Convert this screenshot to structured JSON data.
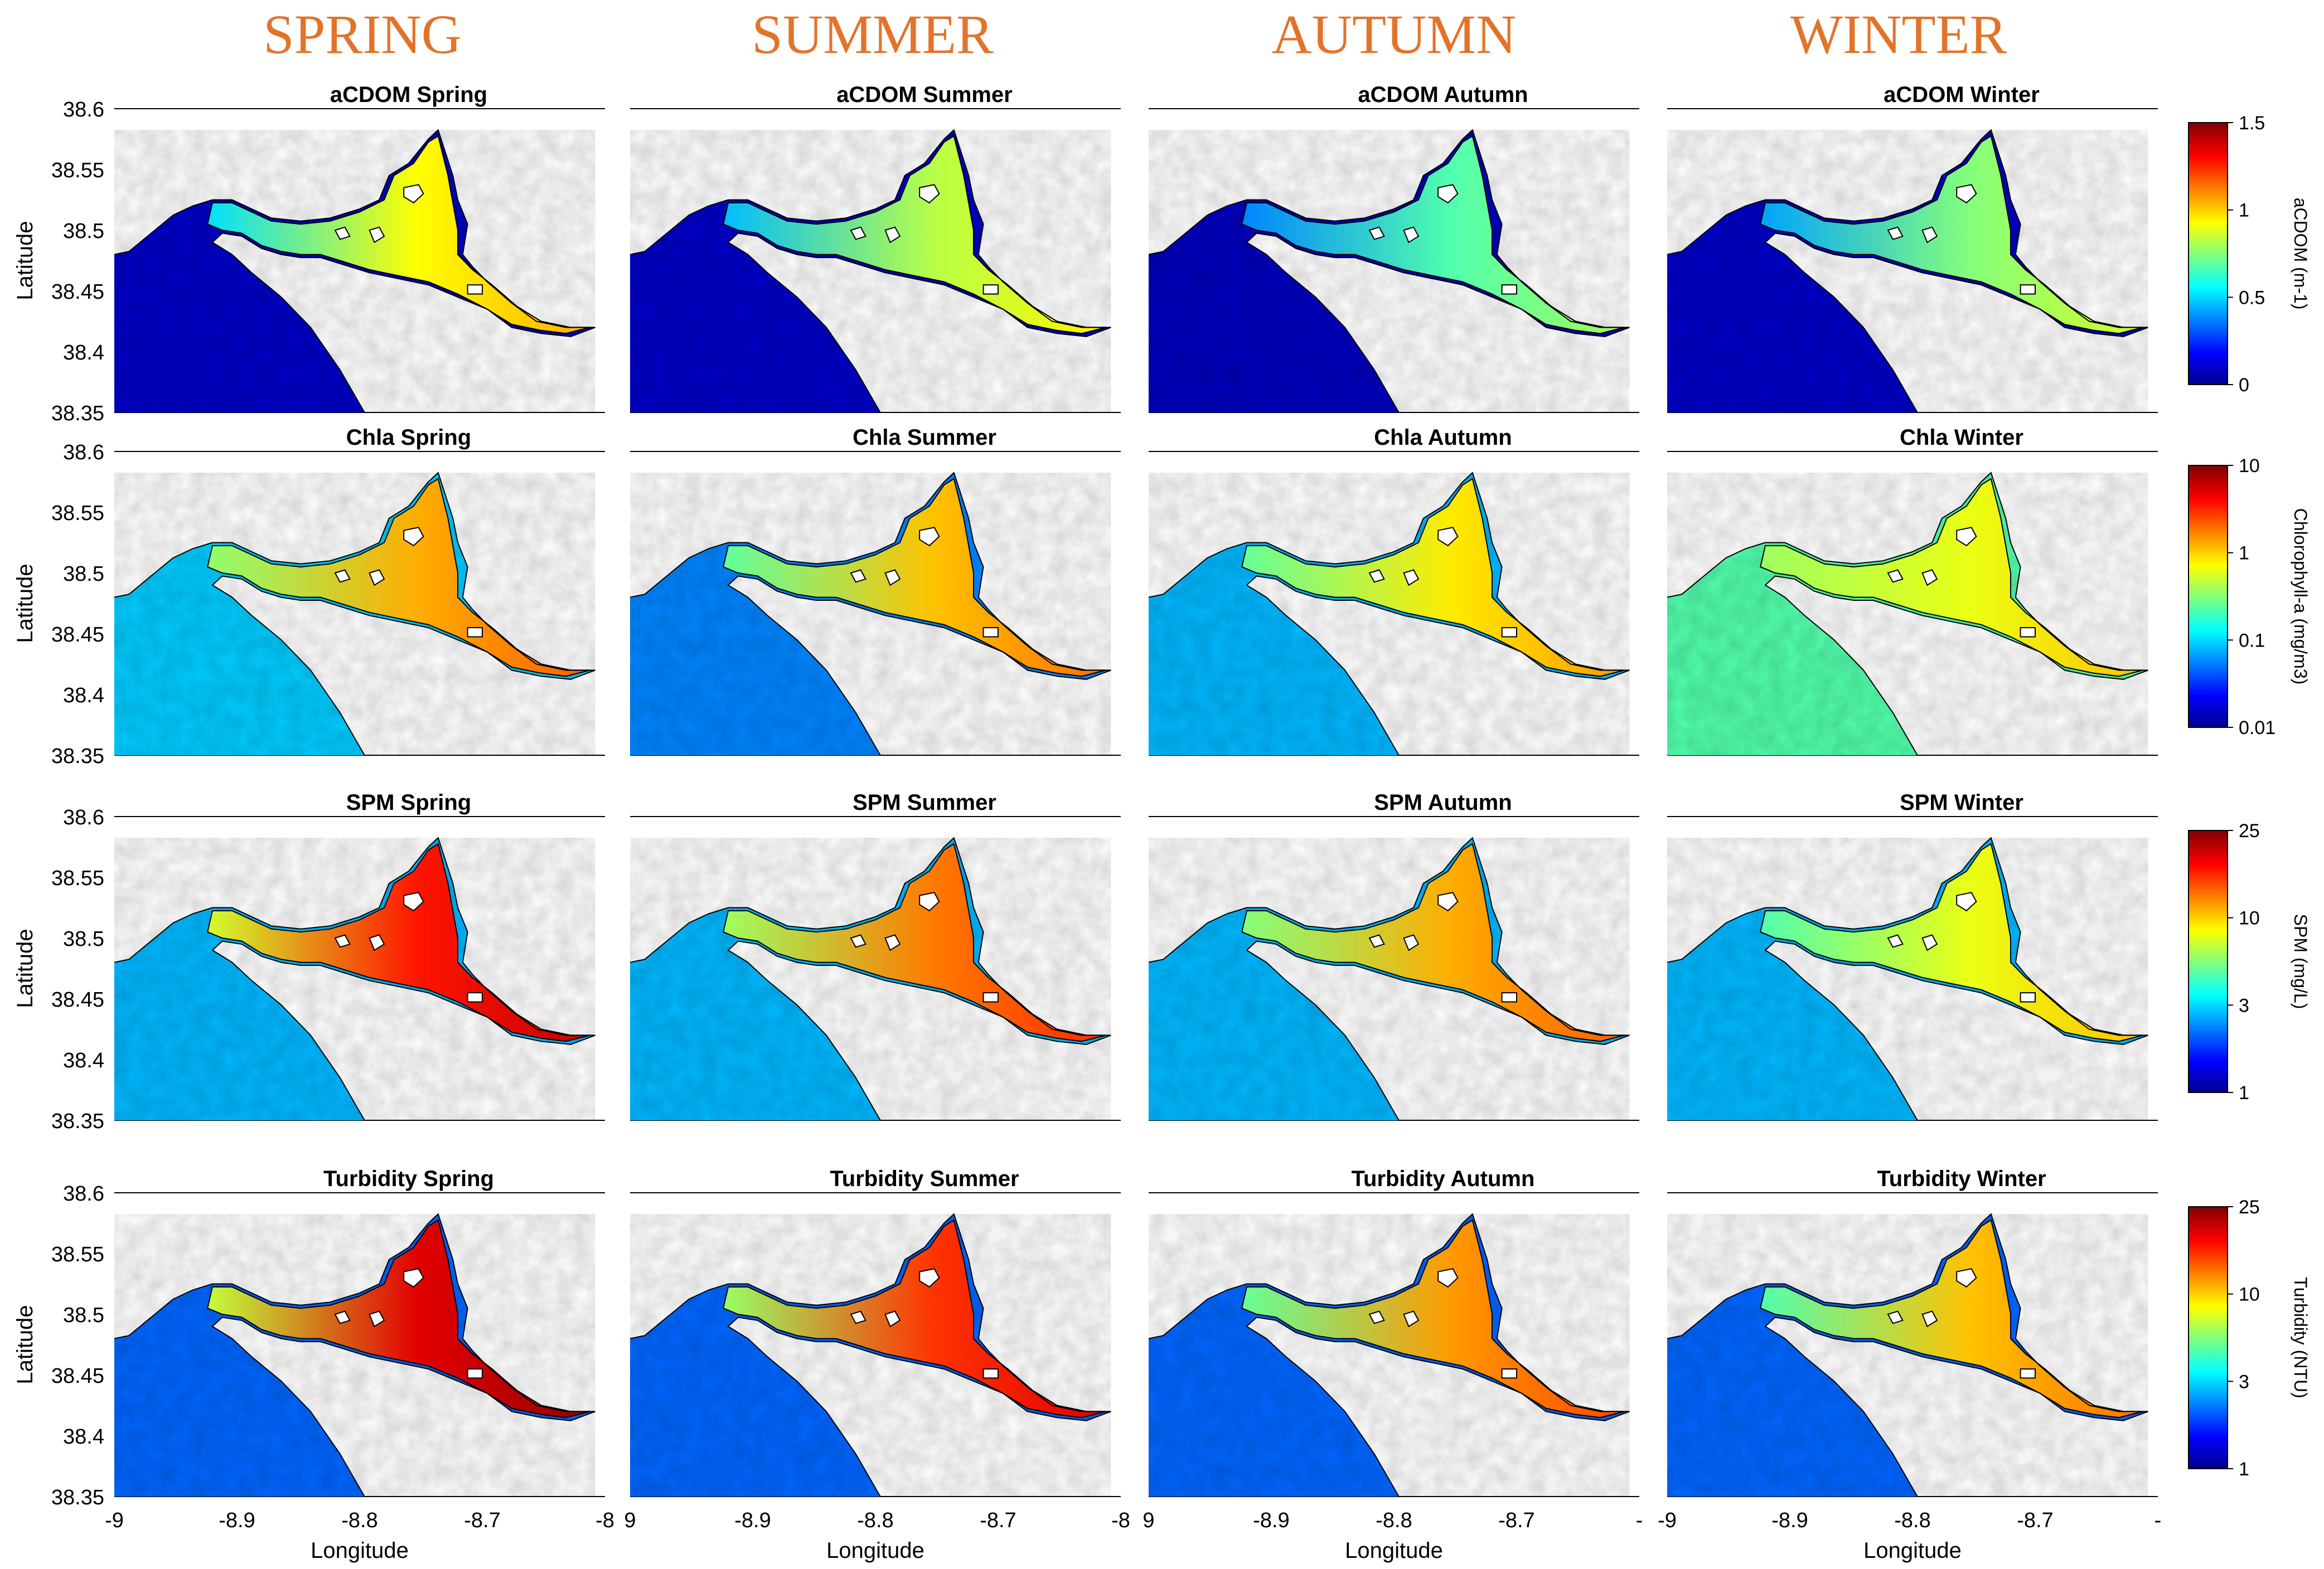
{
  "chart_data": {
    "type": "heatmap",
    "description_type": "map-grid",
    "season_titles": [
      "SPRING",
      "SUMMER",
      "AUTUMN",
      "WINTER"
    ],
    "rows": [
      {
        "variable": "aCDOM",
        "titles": [
          "aCDOM Spring",
          "aCDOM Summer",
          "aCDOM Autumn",
          "aCDOM Winter"
        ],
        "colorbar": {
          "label": "aCDOM (m-1)",
          "ticks": [
            "1.5",
            "1",
            "0.5",
            "0"
          ],
          "scale": "linear",
          "range": [
            0,
            1.5
          ]
        },
        "estuary_intensity": [
          0.62,
          0.55,
          0.45,
          0.5
        ],
        "ocean_intensity": [
          0.06,
          0.06,
          0.05,
          0.06
        ]
      },
      {
        "variable": "Chla",
        "titles": [
          "Chla Spring",
          "Chla Summer",
          "Chla Autumn",
          "Chla Winter"
        ],
        "colorbar": {
          "label": "Chlorophyll-a (mg/m3)",
          "ticks": [
            "10",
            "1",
            "0.1",
            "0.01"
          ],
          "scale": "log",
          "range": [
            0.01,
            10
          ]
        },
        "estuary_intensity": [
          0.7,
          0.68,
          0.64,
          0.6
        ],
        "ocean_intensity": [
          0.32,
          0.25,
          0.3,
          0.45
        ]
      },
      {
        "variable": "SPM",
        "titles": [
          "SPM Spring",
          "SPM Summer",
          "SPM Autumn",
          "SPM Winter"
        ],
        "colorbar": {
          "label": "SPM (mg/L)",
          "ticks": [
            "25",
            "10",
            "3",
            "1"
          ],
          "scale": "log",
          "range": [
            1,
            25
          ]
        },
        "estuary_intensity": [
          0.85,
          0.75,
          0.7,
          0.6
        ],
        "ocean_intensity": [
          0.3,
          0.3,
          0.3,
          0.3
        ]
      },
      {
        "variable": "Turbidity",
        "titles": [
          "Turbidity Spring",
          "Turbidity Summer",
          "Turbidity Autumn",
          "Turbidity Winter"
        ],
        "colorbar": {
          "label": "Turbidity (NTU)",
          "ticks": [
            "25",
            "10",
            "3",
            "1"
          ],
          "scale": "log",
          "range": [
            1,
            25
          ]
        },
        "estuary_intensity": [
          0.9,
          0.82,
          0.72,
          0.68
        ],
        "ocean_intensity": [
          0.22,
          0.22,
          0.22,
          0.22
        ]
      }
    ],
    "y_ticks": [
      "38.6",
      "38.55",
      "38.5",
      "38.45",
      "38.4",
      "38.35"
    ],
    "ylabel": "Latitude",
    "ylim": [
      38.35,
      38.6
    ],
    "x_ticks_by_column": [
      [
        "-9",
        "-8.9",
        "-8.8",
        "-8.7",
        "-8"
      ],
      [
        "9",
        "-8.9",
        "-8.8",
        "-8.7",
        "-8"
      ],
      [
        "9",
        "-8.9",
        "-8.8",
        "-8.7",
        "-"
      ],
      [
        "-9",
        "-8.9",
        "-8.8",
        "-8.7",
        "-"
      ]
    ],
    "xlabel": "Longitude",
    "xlim": [
      -9.0,
      -8.6
    ]
  },
  "colors": {
    "season_title": "#E2742A",
    "coast_line": "#000000",
    "land": "#ffffff",
    "jet_stops": [
      "#00008F",
      "#0000FF",
      "#00FFFF",
      "#FFFF00",
      "#FF0000",
      "#800000"
    ]
  }
}
